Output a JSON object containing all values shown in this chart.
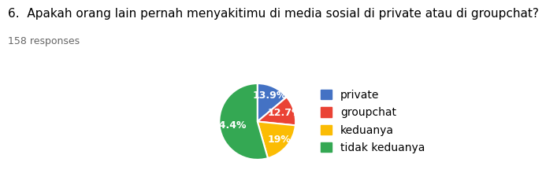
{
  "title": "6.  Apakah orang lain pernah menyakitimu di media sosial di private atau di groupchat?",
  "subtitle": "158 responses",
  "labels": [
    "private",
    "groupchat",
    "keduanya",
    "tidak keduanya"
  ],
  "values": [
    13.9,
    12.7,
    19.0,
    54.4
  ],
  "colors": [
    "#4472c4",
    "#ea4335",
    "#fbbc04",
    "#34a853"
  ],
  "autopct_labels": [
    "13.9%",
    "12.7%",
    "19%",
    "54.4%"
  ],
  "title_fontsize": 11,
  "subtitle_fontsize": 9,
  "legend_fontsize": 10,
  "background_color": "#ffffff"
}
